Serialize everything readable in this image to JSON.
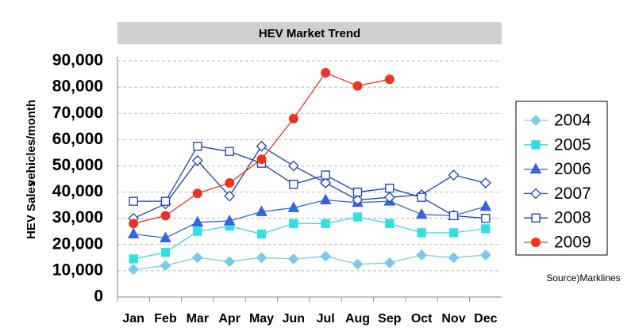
{
  "chart_data": {
    "type": "line",
    "title": "HEV Market Trend",
    "ylabel": [
      "HEV Sales",
      "vehicles/month"
    ],
    "source": "Source)Marklines",
    "categories": [
      "Jan",
      "Feb",
      "Mar",
      "Apr",
      "May",
      "Jun",
      "Jul",
      "Aug",
      "Sep",
      "Oct",
      "Nov",
      "Dec"
    ],
    "ylim": [
      0,
      90000
    ],
    "yticks": [
      0,
      {
        "value": 10000,
        "label": "10,000"
      },
      {
        "value": 20000,
        "label": "20,000"
      },
      {
        "value": 30000,
        "label": "30,000"
      },
      {
        "value": 40000,
        "label": "40,000"
      },
      {
        "value": 50000,
        "label": "50,000"
      },
      {
        "value": 60000,
        "label": "60,000"
      },
      {
        "value": 70000,
        "label": "70,000"
      },
      {
        "value": 80000,
        "label": "80,000"
      },
      {
        "value": 90000,
        "label": "90,000"
      }
    ],
    "grid": true,
    "legend": "right",
    "series": [
      {
        "name": "2004",
        "color": "#7ec8f0",
        "marker": "diamond",
        "values": [
          10500,
          12000,
          15000,
          13500,
          15000,
          14500,
          15500,
          12500,
          13000,
          16000,
          15000,
          16000
        ]
      },
      {
        "name": "2005",
        "color": "#33dede",
        "marker": "square",
        "values": [
          14500,
          17000,
          25000,
          27000,
          24000,
          28000,
          28000,
          30500,
          28000,
          24500,
          24500,
          26000
        ]
      },
      {
        "name": "2006",
        "color": "#3366dd",
        "marker": "triangle",
        "values": [
          24000,
          22500,
          28500,
          29000,
          32500,
          34000,
          37000,
          36000,
          36500,
          31500,
          31000,
          34500
        ]
      },
      {
        "name": "2007",
        "color": "#1a3fb0",
        "marker": "diamond-open",
        "values": [
          30000,
          35500,
          52000,
          38500,
          57500,
          50000,
          43500,
          37000,
          38000,
          39000,
          46500,
          43500
        ]
      },
      {
        "name": "2008",
        "color": "#1a3fb0",
        "marker": "square-open",
        "values": [
          36500,
          36500,
          57500,
          55500,
          51000,
          43000,
          46500,
          40000,
          41500,
          38000,
          31000,
          30000
        ]
      },
      {
        "name": "2009",
        "color": "#ee3322",
        "marker": "circle",
        "values": [
          28000,
          31000,
          39500,
          43500,
          52500,
          68000,
          85500,
          80500,
          83000,
          null,
          null,
          null
        ]
      }
    ]
  }
}
